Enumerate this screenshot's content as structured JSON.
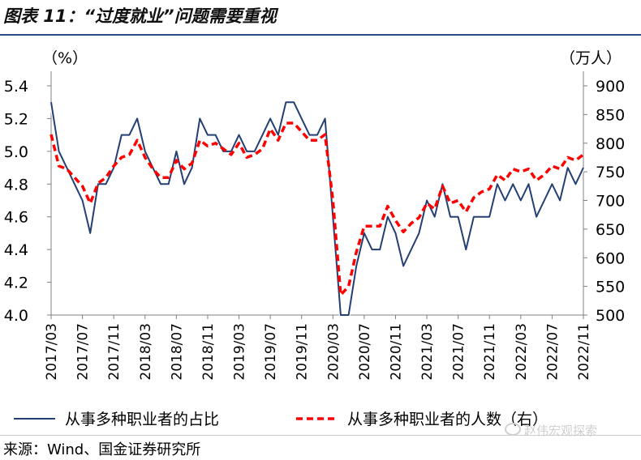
{
  "title": "图表 11：“过度就业”问题需要重视",
  "source": "来源：Wind、国金证券研究所",
  "watermark": "赵伟宏观探索",
  "chart_data": {
    "type": "line",
    "left_unit": "（%）",
    "right_unit": "（万人）",
    "ylim_left": [
      4.0,
      5.4
    ],
    "ylim_right": [
      500,
      900
    ],
    "yticks_left": [
      "4.0",
      "4.2",
      "4.4",
      "4.6",
      "4.8",
      "5.0",
      "5.2",
      "5.4"
    ],
    "yticks_right": [
      "500",
      "550",
      "600",
      "650",
      "700",
      "750",
      "800",
      "850",
      "900"
    ],
    "xtick_labels": [
      "2017/03",
      "2017/07",
      "2017/11",
      "2018/03",
      "2018/07",
      "2018/11",
      "2019/03",
      "2019/07",
      "2019/11",
      "2020/03",
      "2020/07",
      "2020/11",
      "2021/03",
      "2021/07",
      "2021/11",
      "2022/03",
      "2022/07",
      "2022/11"
    ],
    "legend_placement": "bottom",
    "grid": false,
    "colors": {
      "share": "#243f73",
      "count": "#ff0000"
    },
    "series": [
      {
        "name": "从事多种职业者的占比",
        "axis": "left",
        "style": "solid",
        "x_start": "2017/03",
        "values": [
          5.3,
          5.0,
          4.9,
          4.8,
          4.7,
          4.5,
          4.8,
          4.8,
          4.9,
          5.1,
          5.1,
          5.2,
          5.0,
          4.9,
          4.8,
          4.8,
          5.0,
          4.8,
          4.9,
          5.2,
          5.1,
          5.1,
          5.0,
          5.0,
          5.1,
          5.0,
          5.0,
          5.1,
          5.2,
          5.1,
          5.3,
          5.3,
          5.2,
          5.1,
          5.1,
          5.2,
          4.6,
          4.0,
          4.0,
          4.3,
          4.5,
          4.4,
          4.4,
          4.6,
          4.5,
          4.3,
          4.4,
          4.5,
          4.7,
          4.6,
          4.8,
          4.6,
          4.6,
          4.4,
          4.6,
          4.6,
          4.6,
          4.8,
          4.7,
          4.8,
          4.7,
          4.8,
          4.6,
          4.7,
          4.8,
          4.7,
          4.9,
          4.8,
          4.9
        ]
      },
      {
        "name": "从事多种职业者的人数（右）",
        "axis": "right",
        "style": "dashed",
        "x_start": "2017/03",
        "values": [
          815,
          760,
          755,
          740,
          725,
          695,
          730,
          740,
          760,
          775,
          780,
          805,
          775,
          755,
          740,
          740,
          770,
          755,
          765,
          805,
          795,
          800,
          790,
          780,
          800,
          775,
          780,
          790,
          825,
          805,
          835,
          835,
          820,
          805,
          805,
          815,
          700,
          535,
          550,
          610,
          655,
          655,
          655,
          690,
          665,
          645,
          660,
          670,
          695,
          685,
          725,
          695,
          700,
          680,
          705,
          715,
          720,
          745,
          735,
          755,
          750,
          755,
          735,
          745,
          760,
          755,
          775,
          770,
          780
        ]
      }
    ]
  }
}
